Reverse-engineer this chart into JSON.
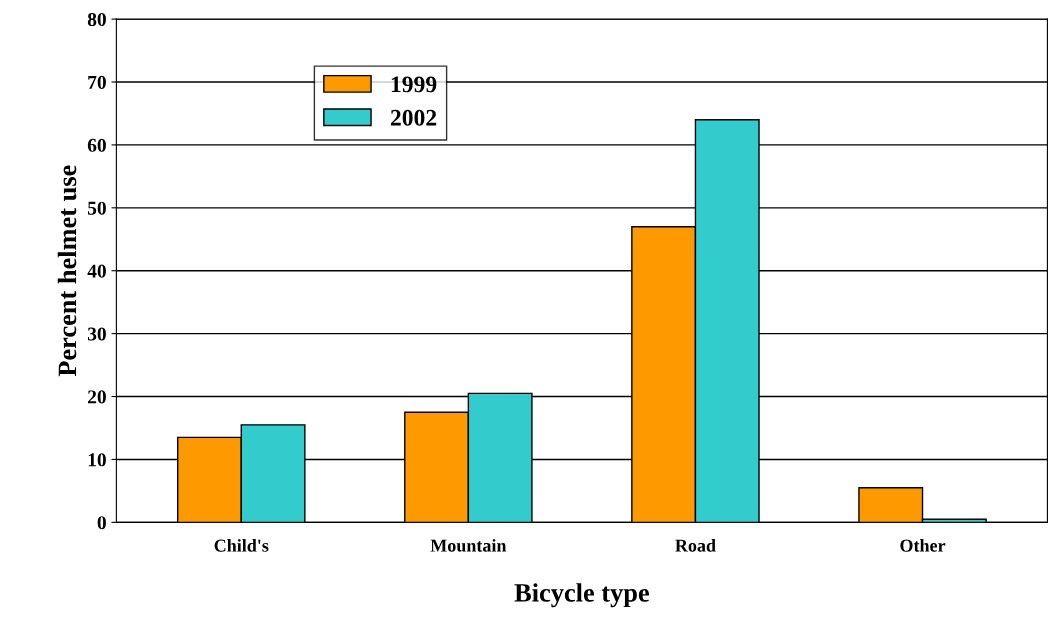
{
  "chart_data": {
    "type": "bar",
    "xlabel": "Bicycle type",
    "ylabel": "Percent helmet use",
    "categories": [
      "Child's",
      "Mountain",
      "Road",
      "Other"
    ],
    "series": [
      {
        "name": "1999",
        "color": "#ff9900",
        "values": [
          13.5,
          17.5,
          47,
          5.5
        ]
      },
      {
        "name": "2002",
        "color": "#33cccc",
        "values": [
          15.5,
          20.5,
          64,
          0.5
        ]
      }
    ],
    "ylim": [
      0,
      80
    ],
    "yticks": [
      0,
      10,
      20,
      30,
      40,
      50,
      60,
      70,
      80
    ],
    "grid": "y",
    "legend": "top left"
  }
}
